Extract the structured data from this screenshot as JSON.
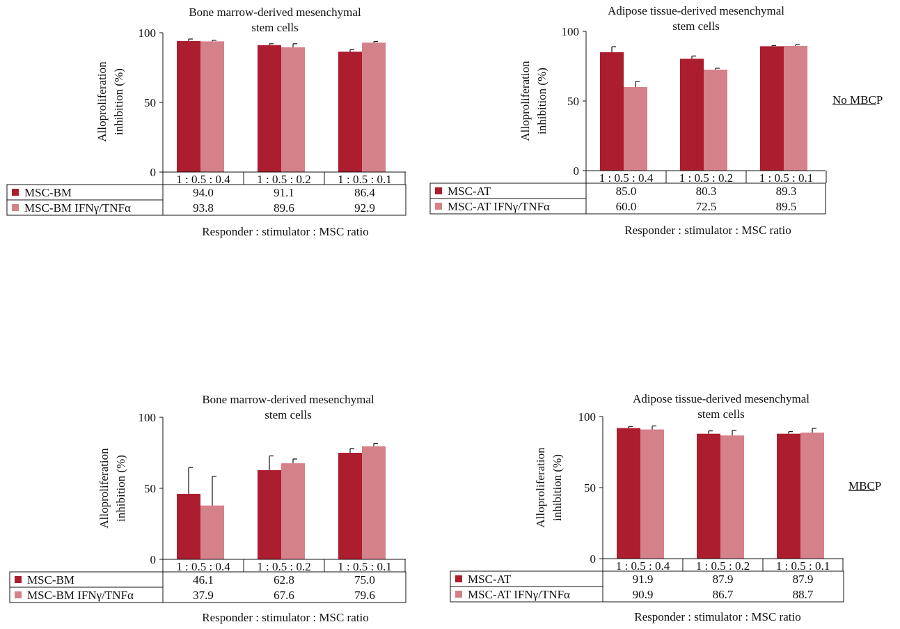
{
  "colors": {
    "series1": "#ac1d2f",
    "series2": "#d4818a",
    "axis": "#111111"
  },
  "conditions": [
    {
      "underlined": "No MBC",
      "rest": "P"
    },
    {
      "underlined": "MBC",
      "rest": "P"
    }
  ],
  "chart_data": [
    {
      "type": "bar",
      "title": [
        "Bone marrow-derived mesenchymal",
        "stem cells"
      ],
      "ylabel": [
        "Alloproliferation",
        "inhibition (%)"
      ],
      "xlabel": "Responder : stimulator : MSC ratio",
      "ylim": [
        0,
        100
      ],
      "yticks": [
        0,
        50,
        100
      ],
      "categories": [
        "1 : 0.5 : 0.4",
        "1 : 0.5 : 0.2",
        "1 : 0.5 : 0.1"
      ],
      "series": [
        {
          "name": "MSC-BM",
          "values": [
            94.0,
            91.1,
            86.4
          ],
          "labels": [
            "94.0",
            "91.1",
            "86.4"
          ],
          "errors": [
            1.5,
            1.0,
            1.5
          ]
        },
        {
          "name": "MSC-BM IFNγ/TNFα",
          "values": [
            93.8,
            89.6,
            92.9
          ],
          "labels": [
            "93.8",
            "89.6",
            "92.9"
          ],
          "errors": [
            0.8,
            2.5,
            0.8
          ]
        }
      ]
    },
    {
      "type": "bar",
      "title": [
        "Adipose tissue-derived mesenchymal",
        "stem cells"
      ],
      "ylabel": [
        "Alloproliferation",
        "inhibition (%)"
      ],
      "xlabel": "Responder : stimulator : MSC ratio",
      "ylim": [
        0,
        100
      ],
      "yticks": [
        0,
        50,
        100
      ],
      "categories": [
        "1 : 0.5 : 0.4",
        "1 : 0.5 : 0.2",
        "1 : 0.5 : 0.1"
      ],
      "series": [
        {
          "name": "MSC-AT",
          "values": [
            85.0,
            80.3,
            89.3
          ],
          "labels": [
            "85.0",
            "80.3",
            "89.3"
          ],
          "errors": [
            4.0,
            2.0,
            0.5
          ]
        },
        {
          "name": "MSC-AT IFNγ/TNFα",
          "values": [
            60.0,
            72.5,
            89.5
          ],
          "labels": [
            "60.0",
            "72.5",
            "89.5"
          ],
          "errors": [
            4.0,
            1.0,
            1.0
          ]
        }
      ]
    },
    {
      "type": "bar",
      "title": [
        "Bone marrow-derived mesenchymal",
        "stem cells"
      ],
      "ylabel": [
        "Alloproliferation",
        "inhibition (%)"
      ],
      "xlabel": "Responder : stimulator : MSC ratio",
      "ylim": [
        0,
        100
      ],
      "yticks": [
        0,
        50,
        100
      ],
      "categories": [
        "1 : 0.5 : 0.4",
        "1 : 0.5 : 0.2",
        "1 : 0.5 : 0.1"
      ],
      "series": [
        {
          "name": "MSC-BM",
          "values": [
            46.1,
            62.8,
            75.0
          ],
          "labels": [
            "46.1",
            "62.8",
            "75.0"
          ],
          "errors": [
            18.5,
            10.0,
            3.0
          ]
        },
        {
          "name": "MSC-BM IFNγ/TNFα",
          "values": [
            37.9,
            67.6,
            79.6
          ],
          "labels": [
            "37.9",
            "67.6",
            "79.6"
          ],
          "errors": [
            20.5,
            3.0,
            2.0
          ]
        }
      ]
    },
    {
      "type": "bar",
      "title": [
        "Adipose tissue-derived mesenchymal",
        "stem cells"
      ],
      "ylabel": [
        "Alloproliferation",
        "inhibition (%)"
      ],
      "xlabel": "Responder : stimulator : MSC ratio",
      "ylim": [
        0,
        100
      ],
      "yticks": [
        0,
        50,
        100
      ],
      "categories": [
        "1 : 0.5 : 0.4",
        "1 : 0.5 : 0.2",
        "1 : 0.5 : 0.1"
      ],
      "series": [
        {
          "name": "MSC-AT",
          "values": [
            91.9,
            87.9,
            87.9
          ],
          "labels": [
            "91.9",
            "87.9",
            "87.9"
          ],
          "errors": [
            1.0,
            2.0,
            1.5
          ]
        },
        {
          "name": "MSC-AT IFNγ/TNFα",
          "values": [
            90.9,
            86.7,
            88.7
          ],
          "labels": [
            "90.9",
            "86.7",
            "88.7"
          ],
          "errors": [
            2.5,
            3.5,
            3.0
          ]
        }
      ]
    }
  ]
}
